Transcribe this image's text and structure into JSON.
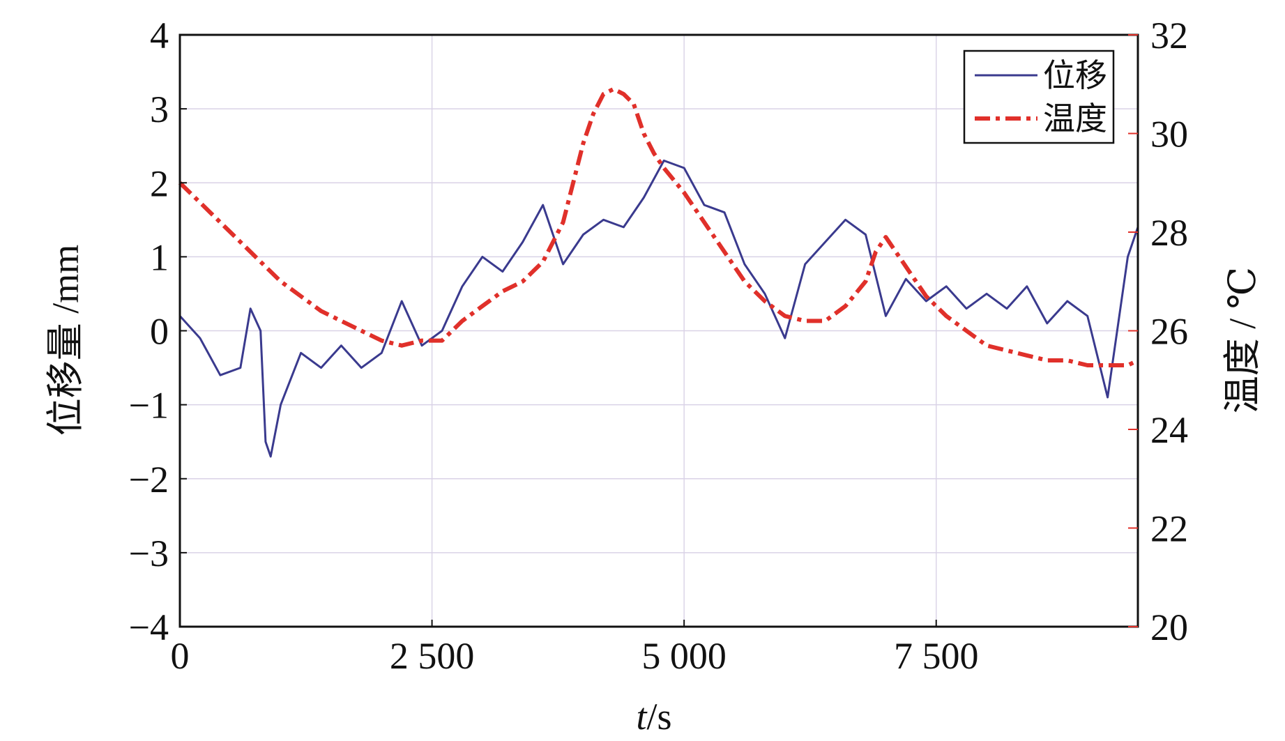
{
  "chart_data": {
    "type": "line",
    "title": "",
    "xlabel_italic": "t",
    "xlabel_unit": "/s",
    "ylabel_left": "位移量 /mm",
    "ylabel_right": "温度 / ℃",
    "xlim": [
      0,
      9500
    ],
    "ylim_left": [
      -4,
      4
    ],
    "ylim_right": [
      20,
      32
    ],
    "x_ticks": [
      0,
      2500,
      5000,
      7500
    ],
    "x_tick_labels": [
      "0",
      "2 500",
      "5 000",
      "7 500"
    ],
    "y_left_ticks": [
      -4,
      -3,
      -2,
      -1,
      0,
      1,
      2,
      3,
      4
    ],
    "y_left_tick_labels": [
      "−4",
      "−3",
      "−2",
      "−1",
      "0",
      "1",
      "2",
      "3",
      "4"
    ],
    "y_right_ticks": [
      20,
      22,
      24,
      26,
      28,
      30,
      32
    ],
    "y_right_tick_labels": [
      "20",
      "22",
      "24",
      "26",
      "28",
      "30",
      "32"
    ],
    "grid": true,
    "legend_position": "top-right",
    "colors": {
      "displacement": "#3a3a8e",
      "temperature": "#e0302a",
      "grid": "#d9d2e6",
      "axis": "#111111"
    },
    "series": [
      {
        "name": "位移",
        "axis": "left",
        "style": "solid",
        "x": [
          0,
          200,
          400,
          600,
          700,
          800,
          850,
          900,
          1000,
          1200,
          1400,
          1600,
          1800,
          2000,
          2200,
          2400,
          2600,
          2800,
          3000,
          3200,
          3400,
          3600,
          3800,
          4000,
          4200,
          4400,
          4600,
          4800,
          5000,
          5200,
          5400,
          5600,
          5800,
          6000,
          6200,
          6400,
          6600,
          6800,
          7000,
          7200,
          7400,
          7600,
          7800,
          8000,
          8200,
          8400,
          8600,
          8800,
          9000,
          9200,
          9400,
          9500
        ],
        "values": [
          0.2,
          -0.1,
          -0.6,
          -0.5,
          0.3,
          0.0,
          -1.5,
          -1.7,
          -1.0,
          -0.3,
          -0.5,
          -0.2,
          -0.5,
          -0.3,
          0.4,
          -0.2,
          0.0,
          0.6,
          1.0,
          0.8,
          1.2,
          1.7,
          0.9,
          1.3,
          1.5,
          1.4,
          1.8,
          2.3,
          2.2,
          1.7,
          1.6,
          0.9,
          0.5,
          -0.1,
          0.9,
          1.2,
          1.5,
          1.3,
          0.2,
          0.7,
          0.4,
          0.6,
          0.3,
          0.5,
          0.3,
          0.6,
          0.1,
          0.4,
          0.2,
          -0.9,
          1.0,
          1.4
        ]
      },
      {
        "name": "温度",
        "axis": "right",
        "style": "dash-dot",
        "x": [
          0,
          200,
          400,
          600,
          800,
          1000,
          1200,
          1400,
          1600,
          1800,
          2000,
          2200,
          2400,
          2600,
          2800,
          3000,
          3200,
          3400,
          3600,
          3800,
          4000,
          4100,
          4200,
          4300,
          4400,
          4500,
          4600,
          4700,
          4800,
          5000,
          5200,
          5400,
          5600,
          5800,
          6000,
          6200,
          6400,
          6600,
          6800,
          6900,
          7000,
          7200,
          7400,
          7600,
          7800,
          8000,
          8200,
          8400,
          8600,
          8800,
          9000,
          9200,
          9400,
          9500
        ],
        "values": [
          29.0,
          28.6,
          28.2,
          27.8,
          27.4,
          27.0,
          26.7,
          26.4,
          26.2,
          26.0,
          25.8,
          25.7,
          25.8,
          25.8,
          26.2,
          26.5,
          26.8,
          27.0,
          27.4,
          28.2,
          29.8,
          30.4,
          30.8,
          30.9,
          30.8,
          30.6,
          30.0,
          29.6,
          29.3,
          28.8,
          28.2,
          27.6,
          27.0,
          26.6,
          26.3,
          26.2,
          26.2,
          26.5,
          27.0,
          27.6,
          27.9,
          27.3,
          26.7,
          26.3,
          26.0,
          25.7,
          25.6,
          25.5,
          25.4,
          25.4,
          25.3,
          25.3,
          25.3,
          25.4
        ]
      }
    ]
  }
}
